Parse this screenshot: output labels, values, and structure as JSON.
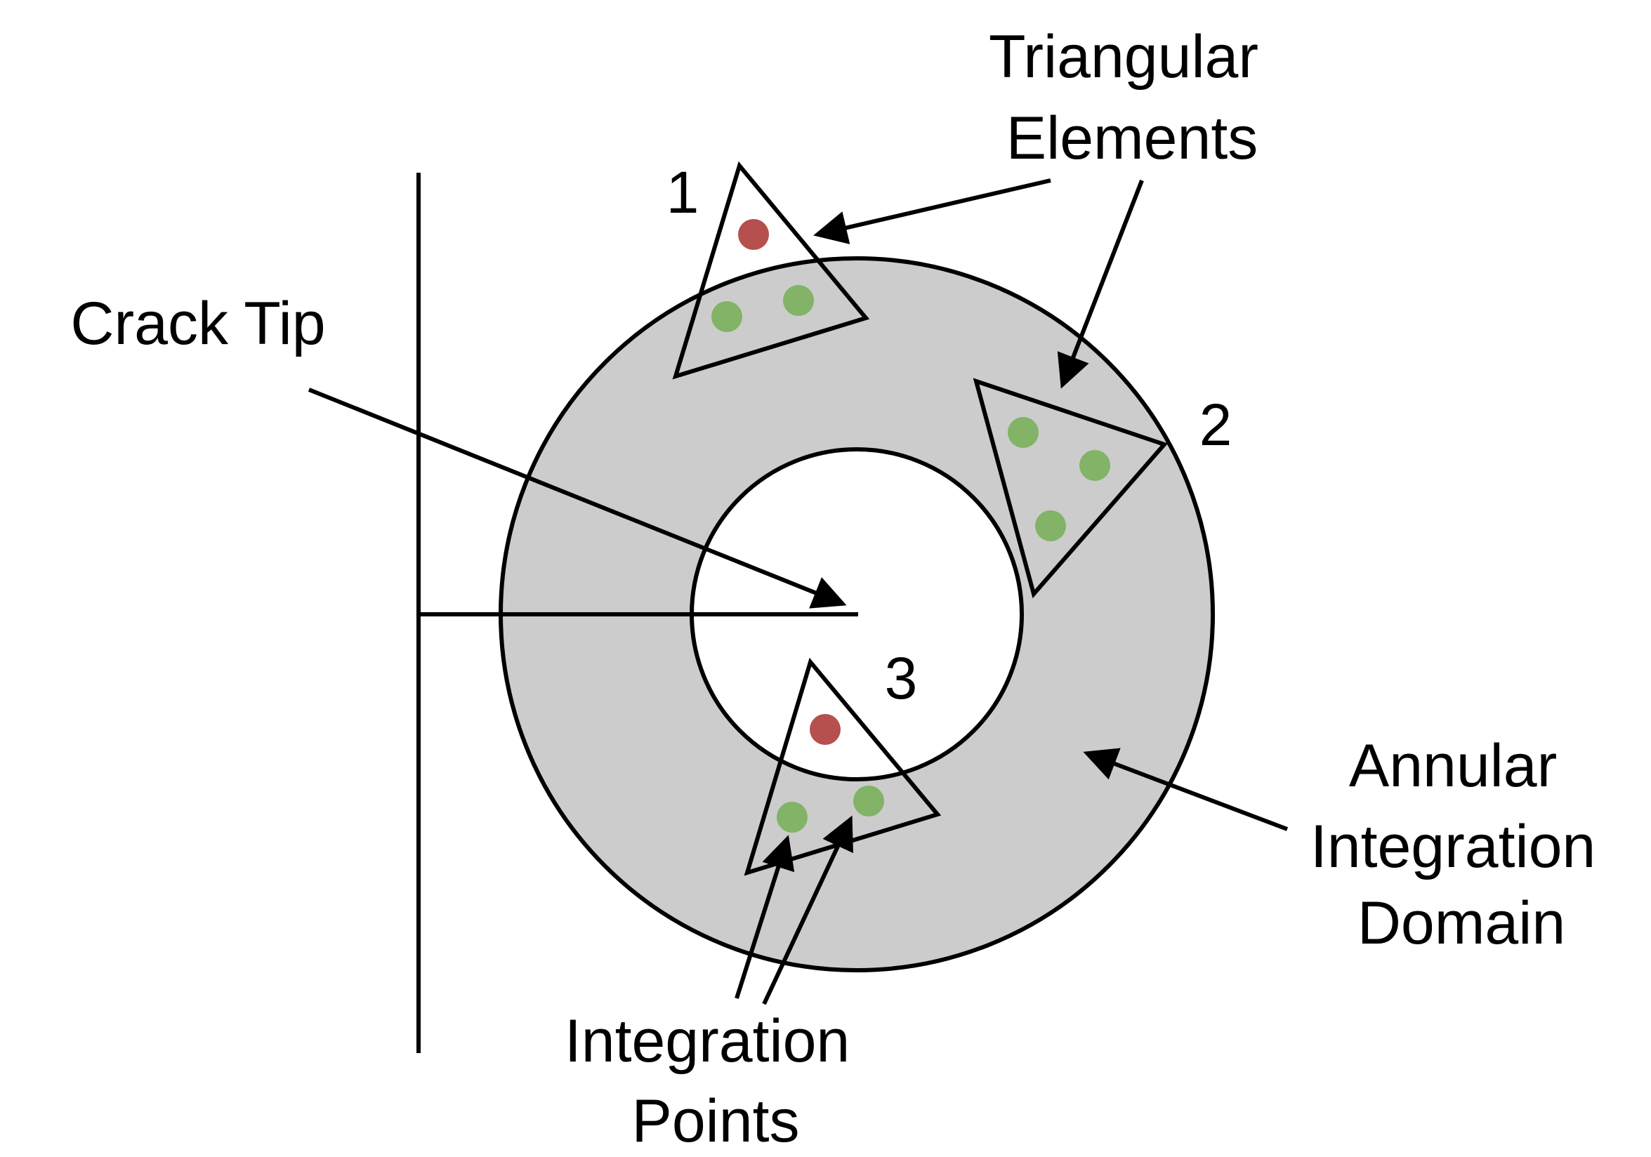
{
  "labels": {
    "crack_tip": "Crack Tip",
    "triangular_elements": [
      "Triangular",
      "Elements"
    ],
    "annular_domain": [
      "Annular",
      "Integration",
      "Domain"
    ],
    "integration_points": [
      "Integration",
      "Points"
    ]
  },
  "elements": [
    {
      "number": "1",
      "integration_points": [
        "red",
        "green",
        "green"
      ]
    },
    {
      "number": "2",
      "integration_points": [
        "green",
        "green",
        "green"
      ]
    },
    {
      "number": "3",
      "integration_points": [
        "red",
        "green",
        "green"
      ]
    }
  ],
  "colors": {
    "annulus_fill": "#cccccc",
    "point_red": "#b5504f",
    "point_green": "#82b366",
    "stroke": "#000000"
  }
}
